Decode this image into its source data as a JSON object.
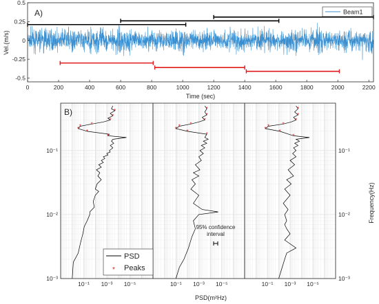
{
  "chart_data": [
    {
      "panel": "A)",
      "type": "line",
      "xlabel": "Time (sec)",
      "ylabel": "Vel.(m/s)",
      "xlim": [
        0,
        2230
      ],
      "ylim": [
        -0.55,
        0.5
      ],
      "xticks": [
        0,
        200,
        400,
        600,
        800,
        1000,
        1200,
        1400,
        1600,
        1800,
        2000,
        2200
      ],
      "yticks": [
        -0.5,
        -0.25,
        0,
        0.25,
        0.5
      ],
      "ytick_labels": [
        "-0.5",
        "-0.25",
        "0",
        "0.25",
        "0.5"
      ],
      "grid": false,
      "legend": {
        "placement": "top-right",
        "entries": [
          "Beam1"
        ]
      },
      "series": [
        {
          "name": "Beam1",
          "color": "#3a8fd0",
          "kind": "velocity time series, noisy, approx. range -0.45 to 0.35 m/s"
        }
      ],
      "windows": [
        {
          "color": "#000000",
          "x0": 0,
          "x1": 1020,
          "y": 0.21
        },
        {
          "color": "#000000",
          "x0": 600,
          "x1": 1620,
          "y": 0.26
        },
        {
          "color": "#000000",
          "x0": 1200,
          "x1": 2230,
          "y": 0.31
        },
        {
          "color": "#e0191b",
          "x0": 210,
          "x1": 810,
          "y": -0.3
        },
        {
          "color": "#e0191b",
          "x0": 820,
          "x1": 1400,
          "y": -0.36
        },
        {
          "color": "#e0191b",
          "x0": 1410,
          "x1": 2010,
          "y": -0.41
        }
      ]
    },
    {
      "panel": "B)",
      "type": "line",
      "xlabel": "PSD(m²Hz)",
      "ylabel": "Frequency(Hz)",
      "x_scale": "log, reversed",
      "y_scale": "log",
      "xlim": [
        10,
        1e-07
      ],
      "ylim": [
        0.001,
        0.55
      ],
      "xticks": [
        0.1,
        0.001,
        1e-05
      ],
      "xtick_labels": [
        "10⁻¹",
        "10⁻³",
        "10⁻⁵"
      ],
      "yticks": [
        0.001,
        0.01,
        0.1
      ],
      "ytick_labels": [
        "10⁻³",
        "10⁻²",
        "10⁻¹"
      ],
      "grid": true,
      "legend": {
        "placement": "bottom-left",
        "entries": [
          "PSD",
          "Peaks"
        ]
      },
      "annotation": {
        "line1": "95% confidence",
        "line2": "interval"
      },
      "series_colors": {
        "PSD": "#000000",
        "Peaks": "#e0191b"
      },
      "subpanels": [
        {
          "psd": [
            [
              0.001,
              1
            ],
            [
              0.0018,
              0.8
            ],
            [
              0.0025,
              0.3
            ],
            [
              0.0035,
              0.2
            ],
            [
              0.005,
              0.12
            ],
            [
              0.0065,
              0.09
            ],
            [
              0.008,
              0.05
            ],
            [
              0.01,
              0.03
            ],
            [
              0.011,
              0.03
            ],
            [
              0.013,
              0.012
            ],
            [
              0.016,
              0.015
            ],
            [
              0.02,
              0.01
            ],
            [
              0.023,
              0.005
            ],
            [
              0.025,
              0.01
            ],
            [
              0.03,
              0.007
            ],
            [
              0.035,
              0.003
            ],
            [
              0.04,
              0.006
            ],
            [
              0.045,
              0.004
            ],
            [
              0.05,
              0.008
            ],
            [
              0.055,
              0.003
            ],
            [
              0.06,
              0.005
            ],
            [
              0.065,
              0.002
            ],
            [
              0.07,
              0.003
            ],
            [
              0.075,
              0.0015
            ],
            [
              0.08,
              0.002
            ],
            [
              0.085,
              0.0008
            ],
            [
              0.09,
              0.001
            ],
            [
              0.095,
              0.0005
            ],
            [
              0.1,
              0.0006
            ],
            [
              0.11,
              0.0003
            ],
            [
              0.12,
              0.0005
            ],
            [
              0.13,
              0.00025
            ],
            [
              0.14,
              0.0004
            ],
            [
              0.15,
              0.0003
            ],
            [
              0.16,
              2e-05
            ],
            [
              0.17,
              0.0008
            ],
            [
              0.18,
              0.0006
            ],
            [
              0.2,
              0.05
            ],
            [
              0.22,
              0.3
            ],
            [
              0.24,
              0.2
            ],
            [
              0.26,
              0.02
            ],
            [
              0.28,
              0.002
            ],
            [
              0.3,
              0.0005
            ],
            [
              0.32,
              0.0008
            ],
            [
              0.35,
              0.0003
            ],
            [
              0.38,
              0.0005
            ],
            [
              0.42,
              0.0002
            ],
            [
              0.45,
              0.0004
            ],
            [
              0.5,
              0.0003
            ]
          ],
          "peaks": [
            [
              0.17,
              0.0008
            ],
            [
              0.2,
              0.05
            ],
            [
              0.22,
              0.3
            ],
            [
              0.24,
              0.2
            ],
            [
              0.26,
              0.02
            ],
            [
              0.3,
              0.0005
            ],
            [
              0.35,
              0.0003
            ],
            [
              0.42,
              0.0002
            ]
          ]
        },
        {
          "psd": [
            [
              0.001,
              0.1
            ],
            [
              0.0015,
              0.05
            ],
            [
              0.002,
              0.02
            ],
            [
              0.003,
              0.008
            ],
            [
              0.0045,
              0.004
            ],
            [
              0.006,
              0.002
            ],
            [
              0.008,
              0.003
            ],
            [
              0.01,
              0.001
            ],
            [
              0.011,
              2e-05
            ],
            [
              0.012,
              0.0005
            ],
            [
              0.015,
              0.003
            ],
            [
              0.02,
              0.001
            ],
            [
              0.025,
              0.005
            ],
            [
              0.03,
              0.002
            ],
            [
              0.035,
              0.004
            ],
            [
              0.04,
              0.001
            ],
            [
              0.045,
              0.003
            ],
            [
              0.05,
              0.0008
            ],
            [
              0.06,
              0.002
            ],
            [
              0.07,
              0.0006
            ],
            [
              0.08,
              0.001
            ],
            [
              0.09,
              0.0004
            ],
            [
              0.1,
              0.0008
            ],
            [
              0.11,
              0.0003
            ],
            [
              0.12,
              0.0006
            ],
            [
              0.13,
              0.0002
            ],
            [
              0.14,
              0.0004
            ],
            [
              0.15,
              0.00015
            ],
            [
              0.16,
              0.0003
            ],
            [
              0.18,
              0.0002
            ],
            [
              0.2,
              0.01
            ],
            [
              0.22,
              0.1
            ],
            [
              0.24,
              0.05
            ],
            [
              0.26,
              0.005
            ],
            [
              0.28,
              0.001
            ],
            [
              0.3,
              0.0003
            ],
            [
              0.33,
              0.0005
            ],
            [
              0.36,
              0.0002
            ],
            [
              0.4,
              0.0003
            ],
            [
              0.45,
              0.0002
            ],
            [
              0.5,
              0.0003
            ]
          ],
          "peaks": [
            [
              0.18,
              0.0002
            ],
            [
              0.2,
              0.01
            ],
            [
              0.22,
              0.1
            ],
            [
              0.24,
              0.05
            ],
            [
              0.26,
              0.005
            ],
            [
              0.3,
              0.0003
            ],
            [
              0.36,
              0.0002
            ],
            [
              0.45,
              0.0002
            ]
          ]
        },
        {
          "psd": [
            [
              0.001,
              0.01
            ],
            [
              0.0015,
              0.005
            ],
            [
              0.002,
              0.003
            ],
            [
              0.0025,
              0.002
            ],
            [
              0.003,
              0.0003
            ],
            [
              0.004,
              0.003
            ],
            [
              0.005,
              0.001
            ],
            [
              0.006,
              0.002
            ],
            [
              0.007,
              0.003
            ],
            [
              0.008,
              0.002
            ],
            [
              0.01,
              0.003
            ],
            [
              0.012,
              0.0015
            ],
            [
              0.015,
              0.004
            ],
            [
              0.02,
              0.001
            ],
            [
              0.025,
              0.003
            ],
            [
              0.03,
              0.0008
            ],
            [
              0.035,
              0.002
            ],
            [
              0.04,
              0.0005
            ],
            [
              0.05,
              0.0015
            ],
            [
              0.06,
              0.0004
            ],
            [
              0.07,
              0.001
            ],
            [
              0.08,
              0.0003
            ],
            [
              0.09,
              0.0006
            ],
            [
              0.1,
              0.0003
            ],
            [
              0.11,
              0.0005
            ],
            [
              0.12,
              0.0002
            ],
            [
              0.13,
              0.0004
            ],
            [
              0.14,
              0.00015
            ],
            [
              0.15,
              0.0003
            ],
            [
              0.16,
              2e-05
            ],
            [
              0.17,
              0.0005
            ],
            [
              0.2,
              0.008
            ],
            [
              0.22,
              0.15
            ],
            [
              0.24,
              0.08
            ],
            [
              0.26,
              0.004
            ],
            [
              0.28,
              0.0008
            ],
            [
              0.3,
              0.0003
            ],
            [
              0.33,
              0.0005
            ],
            [
              0.36,
              0.0002
            ],
            [
              0.4,
              0.0004
            ],
            [
              0.45,
              0.0002
            ],
            [
              0.5,
              0.0003
            ]
          ],
          "peaks": [
            [
              0.17,
              0.0005
            ],
            [
              0.2,
              0.008
            ],
            [
              0.22,
              0.15
            ],
            [
              0.24,
              0.08
            ],
            [
              0.26,
              0.004
            ],
            [
              0.3,
              0.0003
            ],
            [
              0.36,
              0.0002
            ],
            [
              0.45,
              0.0002
            ]
          ]
        }
      ]
    }
  ]
}
